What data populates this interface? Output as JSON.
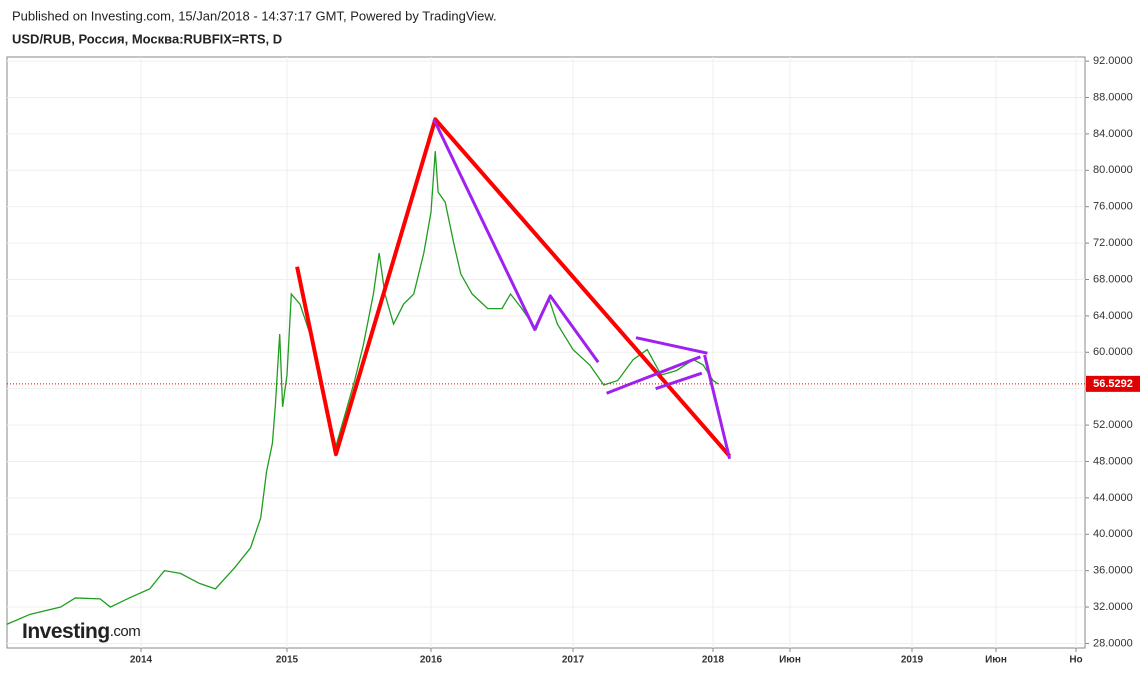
{
  "header": "Published on Investing.com, 15/Jan/2018 - 14:37:17 GMT, Powered by TradingView.",
  "logo": {
    "name": "Investing",
    "suffix": ".com"
  },
  "chart_data": {
    "type": "line",
    "title": "USD/RUB, Россия, Москва:RUBFIX=RTS, D",
    "x": [
      2013.08,
      2013.24,
      2013.45,
      2013.55,
      2013.72,
      2013.79,
      2013.92,
      2014.06,
      2014.16,
      2014.27,
      2014.4,
      2014.51,
      2014.64,
      2014.75,
      2014.82,
      2014.86,
      2014.9,
      2014.92,
      2014.95,
      2014.97,
      2015.0,
      2015.03,
      2015.09,
      2015.16,
      2015.23,
      2015.29,
      2015.34,
      2015.4,
      2015.47,
      2015.53,
      2015.6,
      2015.64,
      2015.68,
      2015.74,
      2015.81,
      2015.88,
      2015.95,
      2016.0,
      2016.03,
      2016.05,
      2016.1,
      2016.16,
      2016.21,
      2016.29,
      2016.4,
      2016.5,
      2016.56,
      2016.64,
      2016.74,
      2016.83,
      2016.89,
      2017.0,
      2017.12,
      2017.22,
      2017.32,
      2017.43,
      2017.53,
      2017.63,
      2017.74,
      2017.86,
      2017.93,
      2018.0,
      2018.03
    ],
    "series": [
      {
        "color": "#1f9e1f",
        "values": [
          30.1,
          31.2,
          32.0,
          33.0,
          32.9,
          32.0,
          33.0,
          34.0,
          36.0,
          35.7,
          34.6,
          34.0,
          36.3,
          38.5,
          41.8,
          46.9,
          50.0,
          54.1,
          62.0,
          54.0,
          57.5,
          66.4,
          65.3,
          62.0,
          57.5,
          53.0,
          49.7,
          53.0,
          56.9,
          60.8,
          66.4,
          70.9,
          66.4,
          63.1,
          65.3,
          66.4,
          70.9,
          75.4,
          82.1,
          77.6,
          76.5,
          72.0,
          68.6,
          66.4,
          64.8,
          64.8,
          66.4,
          64.8,
          62.5,
          65.9,
          63.1,
          60.3,
          58.6,
          56.4,
          56.9,
          59.2,
          60.3,
          57.5,
          58.0,
          59.2,
          58.6,
          56.9,
          56.5
        ]
      }
    ],
    "last_price": 56.5292,
    "last_price_color": "#e00000",
    "drawings": [
      {
        "color": "#ff0000",
        "x": [
          2015.07,
          2015.34,
          2016.03,
          2018.09
        ],
        "y": [
          69.4,
          48.8,
          85.6,
          48.6
        ]
      },
      {
        "color": "#a020f0",
        "x": [
          2016.02,
          2016.61,
          2016.73,
          2016.84,
          2017.18
        ],
        "y": [
          85.6,
          66.4,
          62.5,
          66.2,
          58.9
        ]
      },
      {
        "color": "#a020f0",
        "x": [
          2017.24,
          2017.91
        ],
        "y": [
          55.5,
          59.5
        ]
      },
      {
        "color": "#a020f0",
        "x": [
          2017.45,
          2017.96
        ],
        "y": [
          61.6,
          59.9
        ]
      },
      {
        "color": "#a020f0",
        "x": [
          2017.59,
          2017.92
        ],
        "y": [
          56.0,
          57.7
        ]
      },
      {
        "color": "#a020f0",
        "x": [
          2017.94,
          2018.09
        ],
        "y": [
          59.7,
          48.3
        ]
      }
    ],
    "xlim": [
      2013.08,
      2019.9
    ],
    "ylim": [
      27.5,
      92.45
    ],
    "xticks": [
      2014,
      2015,
      2016,
      2017,
      2018,
      {
        "value": 2018.417,
        "label": "Июн"
      },
      2019,
      {
        "value": 2019.417,
        "label": "Июн"
      },
      {
        "value": 2019.833,
        "label": "Но"
      }
    ],
    "yticks": [
      {
        "value": 28,
        "label": "28.0000"
      },
      {
        "value": 32,
        "label": "32.0000"
      },
      {
        "value": 36,
        "label": "36.0000"
      },
      {
        "value": 40,
        "label": "40.0000"
      },
      {
        "value": 44,
        "label": "44.0000"
      },
      {
        "value": 48,
        "label": "48.0000"
      },
      {
        "value": 52,
        "label": "52.0000"
      },
      {
        "value": 56,
        "label": "56.0000"
      },
      {
        "value": 60,
        "label": "60.0000"
      },
      {
        "value": 64,
        "label": "64.0000"
      },
      {
        "value": 68,
        "label": "68.0000"
      },
      {
        "value": 72,
        "label": "72.0000"
      },
      {
        "value": 76,
        "label": "76.0000"
      },
      {
        "value": 80,
        "label": "80.0000"
      },
      {
        "value": 84,
        "label": "84.0000"
      },
      {
        "value": 88,
        "label": "88.0000"
      },
      {
        "value": 92,
        "label": "92.0000"
      }
    ],
    "grid": true
  }
}
